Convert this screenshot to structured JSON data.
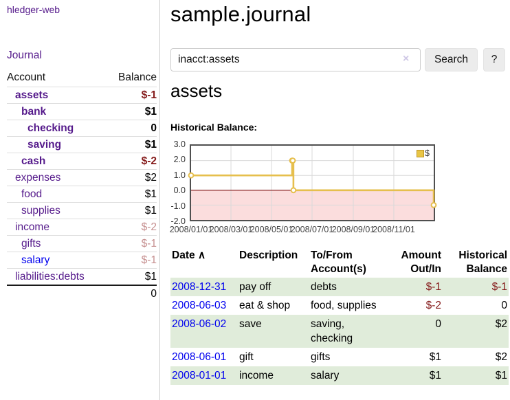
{
  "sidebar": {
    "app_title": "hledger-web",
    "journal_label": "Journal",
    "account_header": "Account",
    "balance_header": "Balance",
    "accounts": [
      {
        "name": "assets",
        "indent": 0,
        "bold": true,
        "balance": "$-1",
        "balance_style": "neg"
      },
      {
        "name": "bank",
        "indent": 1,
        "bold": true,
        "balance": "$1",
        "balance_style": "pos"
      },
      {
        "name": "checking",
        "indent": 2,
        "bold": true,
        "balance": "0",
        "balance_style": "pos"
      },
      {
        "name": "saving",
        "indent": 2,
        "bold": true,
        "balance": "$1",
        "balance_style": "pos"
      },
      {
        "name": "cash",
        "indent": 1,
        "bold": true,
        "balance": "$-2",
        "balance_style": "neg"
      },
      {
        "name": "expenses",
        "indent": 0,
        "bold": false,
        "balance": "$2",
        "balance_style": "pos"
      },
      {
        "name": "food",
        "indent": 1,
        "bold": false,
        "balance": "$1",
        "balance_style": "pos"
      },
      {
        "name": "supplies",
        "indent": 1,
        "bold": false,
        "balance": "$1",
        "balance_style": "pos"
      },
      {
        "name": "income",
        "indent": 0,
        "bold": false,
        "balance": "$-2",
        "balance_style": "neg-faded"
      },
      {
        "name": "gifts",
        "indent": 1,
        "bold": false,
        "balance": "$-1",
        "balance_style": "neg-faded"
      },
      {
        "name": "salary",
        "indent": 1,
        "bold": false,
        "balance": "$-1",
        "balance_style": "neg-faded",
        "link_color": "blue"
      },
      {
        "name": "liabilities:debts",
        "indent": 0,
        "bold": false,
        "balance": "$1",
        "balance_style": "pos"
      }
    ],
    "total": "0"
  },
  "main": {
    "title": "sample.journal",
    "search": {
      "value": "inacct:assets",
      "clear_icon": "×",
      "search_button": "Search",
      "help_button": "?"
    },
    "account_heading": "assets",
    "chart_label": "Historical Balance:"
  },
  "chart_data": {
    "type": "line",
    "title": "Historical Balance:",
    "step": true,
    "series": [
      {
        "name": "$",
        "x": [
          "2008-01-01",
          "2008-06-01",
          "2008-06-02",
          "2008-06-03",
          "2008-12-31"
        ],
        "values": [
          1,
          2,
          2,
          0,
          -1
        ]
      }
    ],
    "xlim": [
      "2008-01-01",
      "2008-12-31"
    ],
    "ylim": [
      -2,
      3
    ],
    "yticks": [
      "3.0",
      "2.0",
      "1.0",
      "0.0",
      "-1.0",
      "-2.0"
    ],
    "xticks": [
      "2008/01/01",
      "2008/03/01",
      "2008/05/01",
      "2008/07/01",
      "2008/09/01",
      "2008/11/01"
    ],
    "legend": {
      "label": "$",
      "position": "top-right"
    },
    "grid": true,
    "colors": {
      "line": "#e6bf4d",
      "marker_fill": "#ffffff",
      "negative_region": "#fbdddd",
      "zero_line": "#7f1010",
      "gridline": "#d9d9d9",
      "frame": "#4f4f4f"
    }
  },
  "register": {
    "headers": {
      "date": "Date",
      "sort_icon": "∧",
      "description": "Description",
      "account1": "To/From",
      "account2": "Account(s)",
      "amount1": "Amount",
      "amount2": "Out/In",
      "balance1": "Historical",
      "balance2": "Balance"
    },
    "rows": [
      {
        "date": "2008-12-31",
        "description": "pay off",
        "accounts": "debts",
        "amount": "$-1",
        "amount_neg": true,
        "balance": "$-1",
        "balance_neg": true,
        "shaded": true
      },
      {
        "date": "2008-06-03",
        "description": "eat & shop",
        "accounts": "food, supplies",
        "amount": "$-2",
        "amount_neg": true,
        "balance": "0",
        "balance_neg": false,
        "shaded": false
      },
      {
        "date": "2008-06-02",
        "description": "save",
        "accounts": "saving, checking",
        "amount": "0",
        "amount_neg": false,
        "balance": "$2",
        "balance_neg": false,
        "shaded": true
      },
      {
        "date": "2008-06-01",
        "description": "gift",
        "accounts": "gifts",
        "amount": "$1",
        "amount_neg": false,
        "balance": "$2",
        "balance_neg": false,
        "shaded": false
      },
      {
        "date": "2008-01-01",
        "description": "income",
        "accounts": "salary",
        "amount": "$1",
        "amount_neg": false,
        "balance": "$1",
        "balance_neg": false,
        "shaded": true
      }
    ]
  },
  "colors": {
    "link_purple": "#551a8b",
    "link_blue": "#0000ee",
    "negative": "#851b1b",
    "negative_faded": "#c68f8f",
    "row_green": "#e0ecda",
    "button_bg": "#ececec",
    "chart_gold": "#e6bf4d",
    "chart_pink": "#fbdddd"
  }
}
